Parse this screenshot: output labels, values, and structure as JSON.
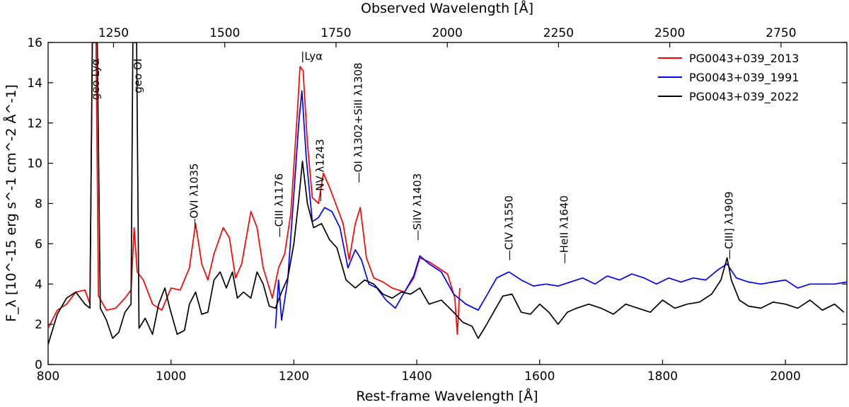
{
  "chart_data": {
    "type": "line",
    "title": "",
    "xlabel": "Rest-frame Wavelength [Å]",
    "ylabel": "F_λ [10^-15 erg s^-1 cm^-2 Å^-1]",
    "top_xlabel": "Observed Wavelength [Å]",
    "xlim": [
      800,
      2100
    ],
    "ylim": [
      0,
      16
    ],
    "x_ticks": [
      800,
      1000,
      1200,
      1400,
      1600,
      1800,
      2000
    ],
    "y_ticks": [
      0,
      2,
      4,
      6,
      8,
      10,
      12,
      14,
      16
    ],
    "top_ticks": [
      1250,
      1500,
      1750,
      2000,
      2250,
      2500,
      2750
    ],
    "top_xlim_observed": [
      1103,
      2898
    ],
    "legend_position": "top-right",
    "series": [
      {
        "name": "PG0043+039_2013",
        "color": "#ff0000",
        "points": [
          [
            800,
            1.8
          ],
          [
            815,
            2.7
          ],
          [
            830,
            3.0
          ],
          [
            845,
            3.6
          ],
          [
            860,
            3.7
          ],
          [
            868,
            3.0
          ],
          [
            872,
            16
          ],
          [
            878,
            16
          ],
          [
            882,
            3.4
          ],
          [
            895,
            2.7
          ],
          [
            910,
            2.8
          ],
          [
            925,
            3.3
          ],
          [
            935,
            3.7
          ],
          [
            940,
            6.8
          ],
          [
            945,
            4.6
          ],
          [
            955,
            4.2
          ],
          [
            970,
            3.0
          ],
          [
            985,
            2.7
          ],
          [
            1000,
            3.8
          ],
          [
            1015,
            3.7
          ],
          [
            1030,
            4.8
          ],
          [
            1040,
            7.0
          ],
          [
            1050,
            5.0
          ],
          [
            1060,
            4.2
          ],
          [
            1070,
            5.5
          ],
          [
            1085,
            6.8
          ],
          [
            1095,
            6.3
          ],
          [
            1105,
            4.3
          ],
          [
            1115,
            5.0
          ],
          [
            1130,
            7.6
          ],
          [
            1140,
            6.8
          ],
          [
            1150,
            4.8
          ],
          [
            1165,
            3.3
          ],
          [
            1175,
            4.8
          ],
          [
            1185,
            5.5
          ],
          [
            1195,
            7.5
          ],
          [
            1205,
            12.2
          ],
          [
            1210,
            14.8
          ],
          [
            1215,
            14.6
          ],
          [
            1222,
            11.0
          ],
          [
            1230,
            8.3
          ],
          [
            1240,
            8.0
          ],
          [
            1248,
            9.5
          ],
          [
            1258,
            8.8
          ],
          [
            1268,
            8.0
          ],
          [
            1280,
            7.0
          ],
          [
            1290,
            5.2
          ],
          [
            1300,
            7.0
          ],
          [
            1308,
            7.8
          ],
          [
            1318,
            5.3
          ],
          [
            1330,
            4.3
          ],
          [
            1345,
            4.1
          ],
          [
            1360,
            3.8
          ],
          [
            1380,
            3.6
          ],
          [
            1395,
            4.3
          ],
          [
            1405,
            5.3
          ],
          [
            1420,
            5.1
          ],
          [
            1435,
            4.8
          ],
          [
            1450,
            4.5
          ],
          [
            1462,
            3.3
          ],
          [
            1466,
            1.5
          ],
          [
            1470,
            3.8
          ]
        ]
      },
      {
        "name": "PG0043+039_1991",
        "color": "#0000ff",
        "points": [
          [
            1170,
            1.8
          ],
          [
            1175,
            4.2
          ],
          [
            1180,
            2.2
          ],
          [
            1190,
            4.2
          ],
          [
            1200,
            8.5
          ],
          [
            1208,
            12.0
          ],
          [
            1213,
            13.6
          ],
          [
            1220,
            10.3
          ],
          [
            1230,
            7.1
          ],
          [
            1240,
            7.3
          ],
          [
            1250,
            7.8
          ],
          [
            1262,
            7.6
          ],
          [
            1275,
            6.8
          ],
          [
            1288,
            4.8
          ],
          [
            1300,
            5.7
          ],
          [
            1310,
            5.2
          ],
          [
            1322,
            4.0
          ],
          [
            1335,
            3.8
          ],
          [
            1350,
            3.2
          ],
          [
            1365,
            2.8
          ],
          [
            1380,
            3.6
          ],
          [
            1395,
            4.4
          ],
          [
            1405,
            5.4
          ],
          [
            1420,
            5.0
          ],
          [
            1440,
            4.6
          ],
          [
            1460,
            3.5
          ],
          [
            1480,
            3.0
          ],
          [
            1500,
            2.7
          ],
          [
            1515,
            3.5
          ],
          [
            1530,
            4.3
          ],
          [
            1550,
            4.6
          ],
          [
            1570,
            4.2
          ],
          [
            1590,
            3.9
          ],
          [
            1610,
            4.0
          ],
          [
            1630,
            3.9
          ],
          [
            1650,
            4.1
          ],
          [
            1670,
            4.3
          ],
          [
            1690,
            4.0
          ],
          [
            1710,
            4.4
          ],
          [
            1730,
            4.2
          ],
          [
            1750,
            4.5
          ],
          [
            1770,
            4.3
          ],
          [
            1790,
            4.0
          ],
          [
            1810,
            4.3
          ],
          [
            1830,
            4.1
          ],
          [
            1850,
            4.3
          ],
          [
            1870,
            4.2
          ],
          [
            1890,
            4.7
          ],
          [
            1905,
            5.0
          ],
          [
            1920,
            4.3
          ],
          [
            1940,
            4.1
          ],
          [
            1960,
            4.0
          ],
          [
            1980,
            4.1
          ],
          [
            2000,
            4.2
          ],
          [
            2020,
            3.8
          ],
          [
            2040,
            4.0
          ],
          [
            2060,
            4.0
          ],
          [
            2080,
            4.0
          ],
          [
            2100,
            4.1
          ]
        ]
      },
      {
        "name": "PG0043+039_2022",
        "color": "#000000",
        "points": [
          [
            800,
            1.0
          ],
          [
            815,
            2.5
          ],
          [
            830,
            3.3
          ],
          [
            845,
            3.6
          ],
          [
            860,
            3.0
          ],
          [
            868,
            2.8
          ],
          [
            872,
            16
          ],
          [
            880,
            16
          ],
          [
            885,
            2.8
          ],
          [
            895,
            2.2
          ],
          [
            905,
            1.3
          ],
          [
            915,
            1.6
          ],
          [
            925,
            2.6
          ],
          [
            935,
            3.0
          ],
          [
            938,
            16
          ],
          [
            944,
            16
          ],
          [
            948,
            1.8
          ],
          [
            958,
            2.3
          ],
          [
            970,
            1.5
          ],
          [
            980,
            3.0
          ],
          [
            990,
            3.8
          ],
          [
            998,
            2.8
          ],
          [
            1010,
            1.5
          ],
          [
            1022,
            1.7
          ],
          [
            1030,
            3.0
          ],
          [
            1040,
            3.6
          ],
          [
            1050,
            2.5
          ],
          [
            1060,
            2.6
          ],
          [
            1070,
            4.2
          ],
          [
            1080,
            4.6
          ],
          [
            1090,
            3.8
          ],
          [
            1100,
            4.6
          ],
          [
            1108,
            3.3
          ],
          [
            1118,
            3.6
          ],
          [
            1130,
            3.3
          ],
          [
            1140,
            4.6
          ],
          [
            1150,
            4.0
          ],
          [
            1160,
            2.9
          ],
          [
            1170,
            2.8
          ],
          [
            1180,
            3.6
          ],
          [
            1190,
            4.3
          ],
          [
            1200,
            6.0
          ],
          [
            1208,
            8.2
          ],
          [
            1214,
            10.1
          ],
          [
            1222,
            8.0
          ],
          [
            1232,
            6.8
          ],
          [
            1245,
            7.0
          ],
          [
            1258,
            6.2
          ],
          [
            1270,
            5.8
          ],
          [
            1285,
            4.2
          ],
          [
            1300,
            3.8
          ],
          [
            1315,
            4.2
          ],
          [
            1330,
            4.0
          ],
          [
            1345,
            3.5
          ],
          [
            1360,
            3.3
          ],
          [
            1375,
            3.6
          ],
          [
            1390,
            3.5
          ],
          [
            1405,
            3.8
          ],
          [
            1420,
            3.0
          ],
          [
            1440,
            3.2
          ],
          [
            1460,
            2.6
          ],
          [
            1475,
            2.1
          ],
          [
            1490,
            1.9
          ],
          [
            1500,
            1.3
          ],
          [
            1512,
            1.9
          ],
          [
            1525,
            2.6
          ],
          [
            1540,
            3.4
          ],
          [
            1555,
            3.5
          ],
          [
            1570,
            2.6
          ],
          [
            1585,
            2.5
          ],
          [
            1600,
            3.0
          ],
          [
            1615,
            2.6
          ],
          [
            1630,
            2.0
          ],
          [
            1645,
            2.6
          ],
          [
            1660,
            2.8
          ],
          [
            1680,
            3.0
          ],
          [
            1700,
            2.8
          ],
          [
            1720,
            2.5
          ],
          [
            1740,
            3.0
          ],
          [
            1760,
            2.8
          ],
          [
            1780,
            2.6
          ],
          [
            1800,
            3.2
          ],
          [
            1820,
            2.8
          ],
          [
            1840,
            3.0
          ],
          [
            1860,
            3.1
          ],
          [
            1880,
            3.5
          ],
          [
            1895,
            4.2
          ],
          [
            1905,
            5.3
          ],
          [
            1912,
            4.2
          ],
          [
            1925,
            3.2
          ],
          [
            1940,
            2.9
          ],
          [
            1960,
            2.8
          ],
          [
            1980,
            3.1
          ],
          [
            2000,
            3.0
          ],
          [
            2020,
            2.8
          ],
          [
            2040,
            3.2
          ],
          [
            2060,
            2.7
          ],
          [
            2080,
            3.0
          ],
          [
            2095,
            2.6
          ]
        ]
      }
    ],
    "annotations": [
      {
        "text": "geo Lyα",
        "x": 877,
        "y_top": 15.2
      },
      {
        "text": "geo OI",
        "x": 946,
        "y_top": 15.2
      },
      {
        "text": "|Lyα",
        "x": 1216,
        "y_top": 15.7
      },
      {
        "text": "—OVI λ1035",
        "x": 1038,
        "y_top": 10.0
      },
      {
        "text": "—CIII λ1176",
        "x": 1176,
        "y_top": 9.5
      },
      {
        "text": "—NV λ1243",
        "x": 1243,
        "y_top": 11.2
      },
      {
        "text": "—OI λ1302+SiII λ1308",
        "x": 1305,
        "y_top": 15.0
      },
      {
        "text": "—SiIV λ1403",
        "x": 1401,
        "y_top": 9.5
      },
      {
        "text": "—CIV λ1550",
        "x": 1550,
        "y_top": 8.4
      },
      {
        "text": "—HeII λ1640",
        "x": 1640,
        "y_top": 8.4
      },
      {
        "text": "—CIII] λ1909",
        "x": 1908,
        "y_top": 8.6
      }
    ]
  }
}
